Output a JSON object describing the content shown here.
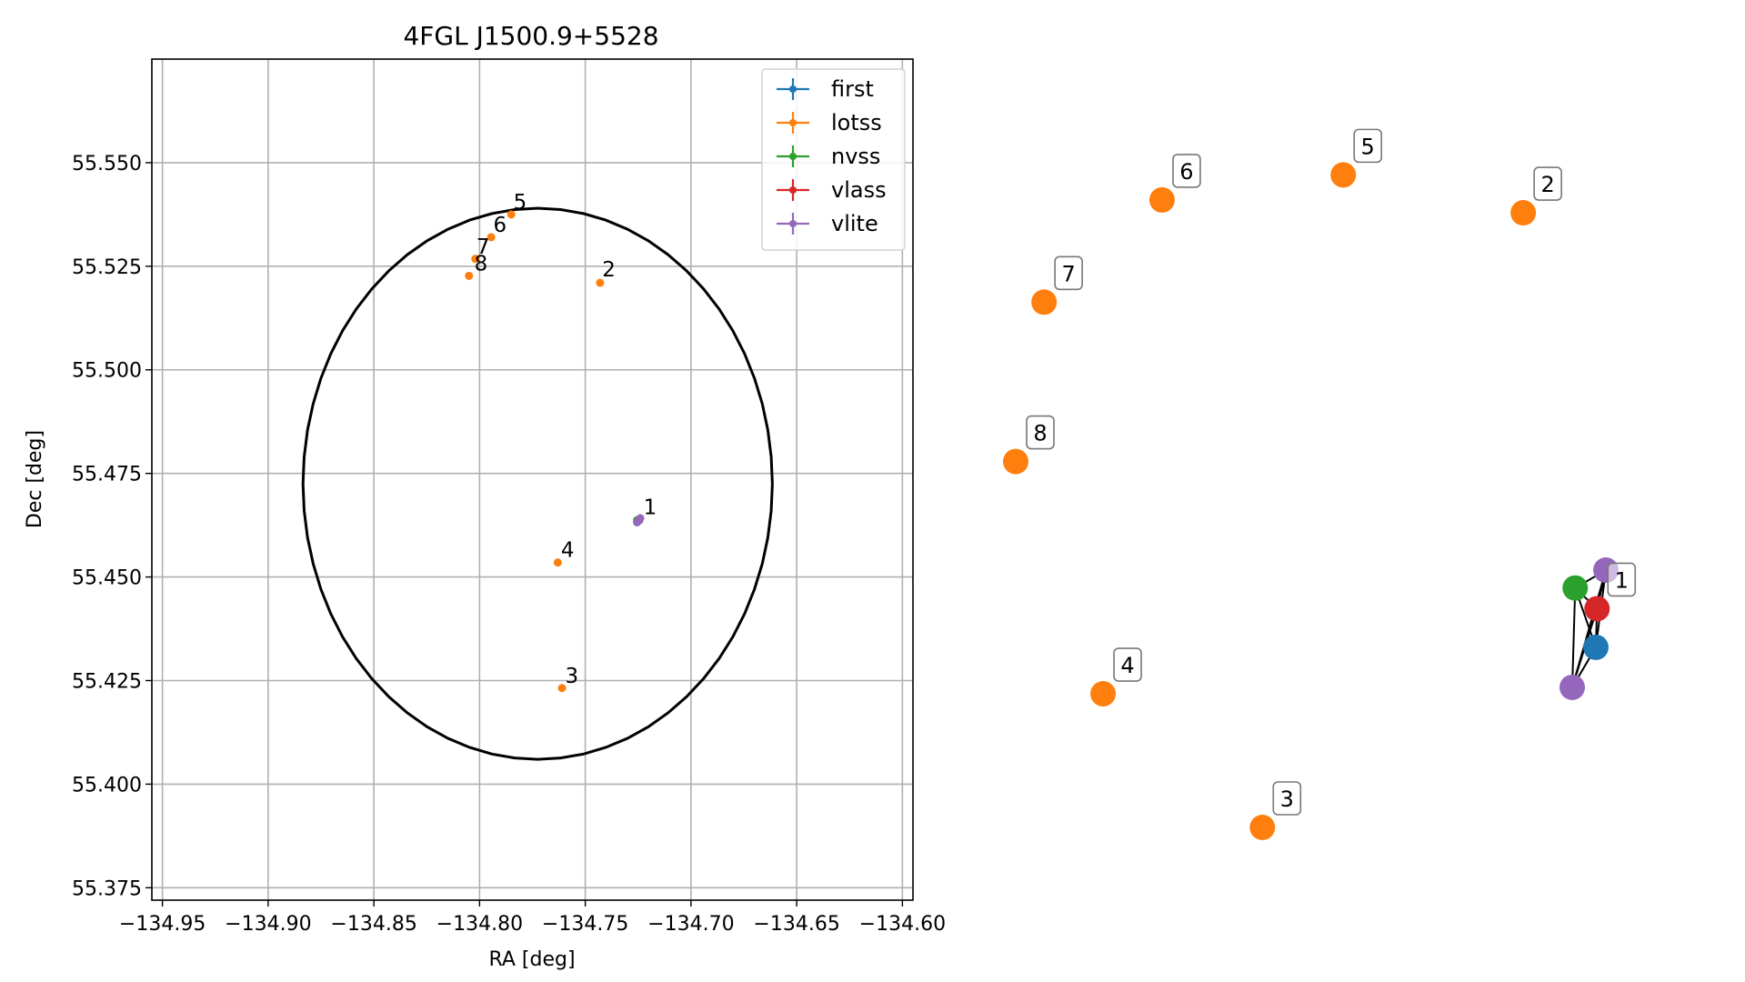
{
  "chart_data": [
    {
      "type": "scatter",
      "title": "4FGL J1500.9+5528",
      "xlabel": "RA [deg]",
      "ylabel": "Dec [deg]",
      "xlim": [
        -134.955,
        -134.595
      ],
      "ylim": [
        55.372,
        55.575
      ],
      "xticks": [
        -134.95,
        -134.9,
        -134.85,
        -134.8,
        -134.75,
        -134.7,
        -134.65,
        -134.6
      ],
      "xtick_labels": [
        "−134.95",
        "−134.90",
        "−134.85",
        "−134.80",
        "−134.75",
        "−134.70",
        "−134.65",
        "−134.60"
      ],
      "yticks": [
        55.375,
        55.4,
        55.425,
        55.45,
        55.475,
        55.5,
        55.525,
        55.55
      ],
      "ytick_labels": [
        "55.375",
        "55.400",
        "55.425",
        "55.450",
        "55.475",
        "55.500",
        "55.525",
        "55.550"
      ],
      "grid": true,
      "legend_placement": "top-right",
      "series": [
        {
          "name": "first",
          "color": "#1f77b4",
          "points": [
            {
              "x": -134.7245,
              "y": 55.4637
            }
          ]
        },
        {
          "name": "lotss",
          "color": "#ff7f0e",
          "points": [
            {
              "x": -134.743,
              "y": 55.521
            },
            {
              "x": -134.761,
              "y": 55.4232
            },
            {
              "x": -134.763,
              "y": 55.4535
            },
            {
              "x": -134.785,
              "y": 55.5375
            },
            {
              "x": -134.7945,
              "y": 55.532
            },
            {
              "x": -134.802,
              "y": 55.5268
            },
            {
              "x": -134.805,
              "y": 55.5227
            }
          ]
        },
        {
          "name": "nvss",
          "color": "#2ca02c",
          "points": [
            {
              "x": -134.7255,
              "y": 55.4637
            }
          ]
        },
        {
          "name": "vlass",
          "color": "#d62728",
          "points": [
            {
              "x": -134.7245,
              "y": 55.4638
            }
          ]
        },
        {
          "name": "vlite",
          "color": "#9467bd",
          "points": [
            {
              "x": -134.724,
              "y": 55.4642
            },
            {
              "x": -134.7255,
              "y": 55.4632
            }
          ]
        }
      ],
      "ellipse": {
        "center_x": -134.7725,
        "center_y": 55.4725,
        "radius_x": 0.111,
        "radius_y": 0.0665
      },
      "point_labels": [
        {
          "text": "1",
          "x": -134.7225,
          "y": 55.4652
        },
        {
          "text": "2",
          "x": -134.742,
          "y": 55.5225
        },
        {
          "text": "3",
          "x": -134.7595,
          "y": 55.4245
        },
        {
          "text": "4",
          "x": -134.7615,
          "y": 55.4548
        },
        {
          "text": "5",
          "x": -134.784,
          "y": 55.5388
        },
        {
          "text": "6",
          "x": -134.7935,
          "y": 55.5333
        },
        {
          "text": "7",
          "x": -134.8015,
          "y": 55.528
        },
        {
          "text": "8",
          "x": -134.8025,
          "y": 55.524
        }
      ]
    },
    {
      "type": "network",
      "nodes": [
        {
          "id": "n5",
          "label": "5",
          "color": "#ff7f0e",
          "x": 0.555,
          "y": 0.913
        },
        {
          "id": "n6",
          "label": "6",
          "color": "#ff7f0e",
          "x": 0.248,
          "y": 0.878
        },
        {
          "id": "n2",
          "label": "2",
          "color": "#ff7f0e",
          "x": 0.86,
          "y": 0.86
        },
        {
          "id": "n7",
          "label": "7",
          "color": "#ff7f0e",
          "x": 0.048,
          "y": 0.735
        },
        {
          "id": "n8",
          "label": "8",
          "color": "#ff7f0e",
          "x": 0.0,
          "y": 0.512
        },
        {
          "id": "n4",
          "label": "4",
          "color": "#ff7f0e",
          "x": 0.148,
          "y": 0.187
        },
        {
          "id": "n3",
          "label": "3",
          "color": "#ff7f0e",
          "x": 0.418,
          "y": 0.0
        },
        {
          "id": "vl1",
          "label": "",
          "color": "#9467bd",
          "x": 1.0,
          "y": 0.36
        },
        {
          "id": "nv",
          "label": "",
          "color": "#2ca02c",
          "x": 0.948,
          "y": 0.335
        },
        {
          "id": "vla",
          "label": "1",
          "color": "#d62728",
          "x": 0.985,
          "y": 0.306
        },
        {
          "id": "fi",
          "label": "",
          "color": "#1f77b4",
          "x": 0.983,
          "y": 0.252
        },
        {
          "id": "vl2",
          "label": "",
          "color": "#9467bd",
          "x": 0.943,
          "y": 0.196
        }
      ],
      "edges": [
        [
          "vl1",
          "nv"
        ],
        [
          "vl1",
          "vla"
        ],
        [
          "vl1",
          "fi"
        ],
        [
          "vl1",
          "vl2"
        ],
        [
          "nv",
          "vla"
        ],
        [
          "nv",
          "fi"
        ],
        [
          "nv",
          "vl2"
        ],
        [
          "vla",
          "fi"
        ],
        [
          "vla",
          "vl2"
        ],
        [
          "fi",
          "vl2"
        ]
      ]
    }
  ]
}
